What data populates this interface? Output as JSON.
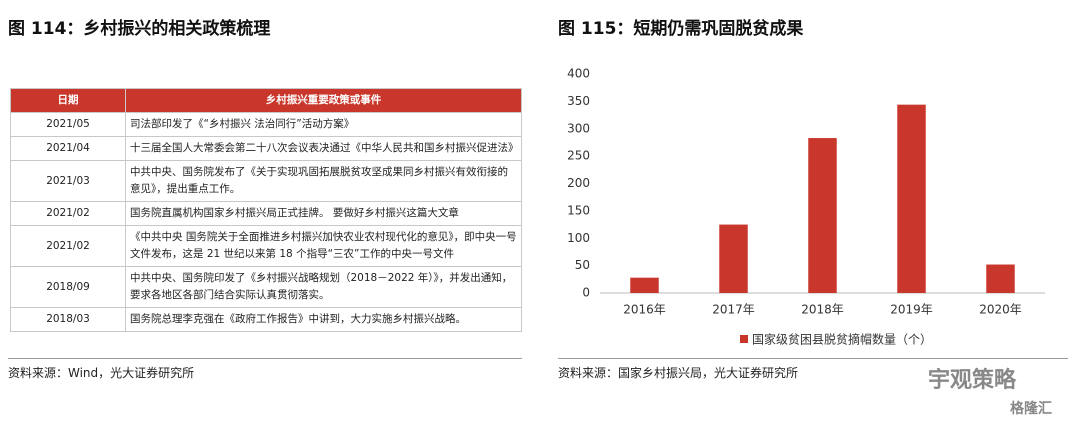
{
  "left": {
    "title": "图 114：乡村振兴的相关政策梳理",
    "table": {
      "header": [
        "日期",
        "乡村振兴重要政策或事件"
      ],
      "rows": [
        [
          "2021/05",
          "司法部印发了《“乡村振兴 法治同行”活动方案》"
        ],
        [
          "2021/04",
          "十三届全国人大常委会第二十八次会议表决通过《中华人民共和国乡村振兴促进法》"
        ],
        [
          "2021/03",
          "中共中央、国务院发布了《关于实现巩固拓展脱贫攻坚成果同乡村振兴有效衔接的意见》，提出重点工作。"
        ],
        [
          "2021/02",
          "国务院直属机构国家乡村振兴局正式挂牌。 要做好乡村振兴这篇大文章"
        ],
        [
          "2021/02",
          "《中共中央 国务院关于全面推进乡村振兴加快农业农村现代化的意见》，即中央一号文件发布，这是 21 世纪以来第 18 个指导“三农”工作的中央一号文件"
        ],
        [
          "2018/09",
          "中共中央、国务院印发了《乡村振兴战略规划（2018－2022 年）》，并发出通知，要求各地区各部门结合实际认真贯彻落实。"
        ],
        [
          "2018/03",
          "国务院总理李克强在《政府工作报告》中讲到，大力实施乡村振兴战略。"
        ]
      ]
    },
    "source": "资料来源：Wind，光大证券研究所"
  },
  "chart_data": {
    "type": "bar",
    "title": "图 115：短期仍需巩固脱贫成果",
    "categories": [
      "2016年",
      "2017年",
      "2018年",
      "2019年",
      "2020年"
    ],
    "series": [
      {
        "name": "国家级贫困县脱贫摘帽数量（个）",
        "color": "#c9372c",
        "values": [
          28,
          125,
          283,
          344,
          52
        ]
      }
    ],
    "ylim": [
      0,
      400
    ],
    "yticks": [
      0,
      50,
      100,
      150,
      200,
      250,
      300,
      350,
      400
    ],
    "legend": "bottom",
    "source": "资料来源：国家乡村振兴局，光大证券研究所"
  },
  "watermarks": [
    "宇观策略",
    "格隆汇"
  ]
}
